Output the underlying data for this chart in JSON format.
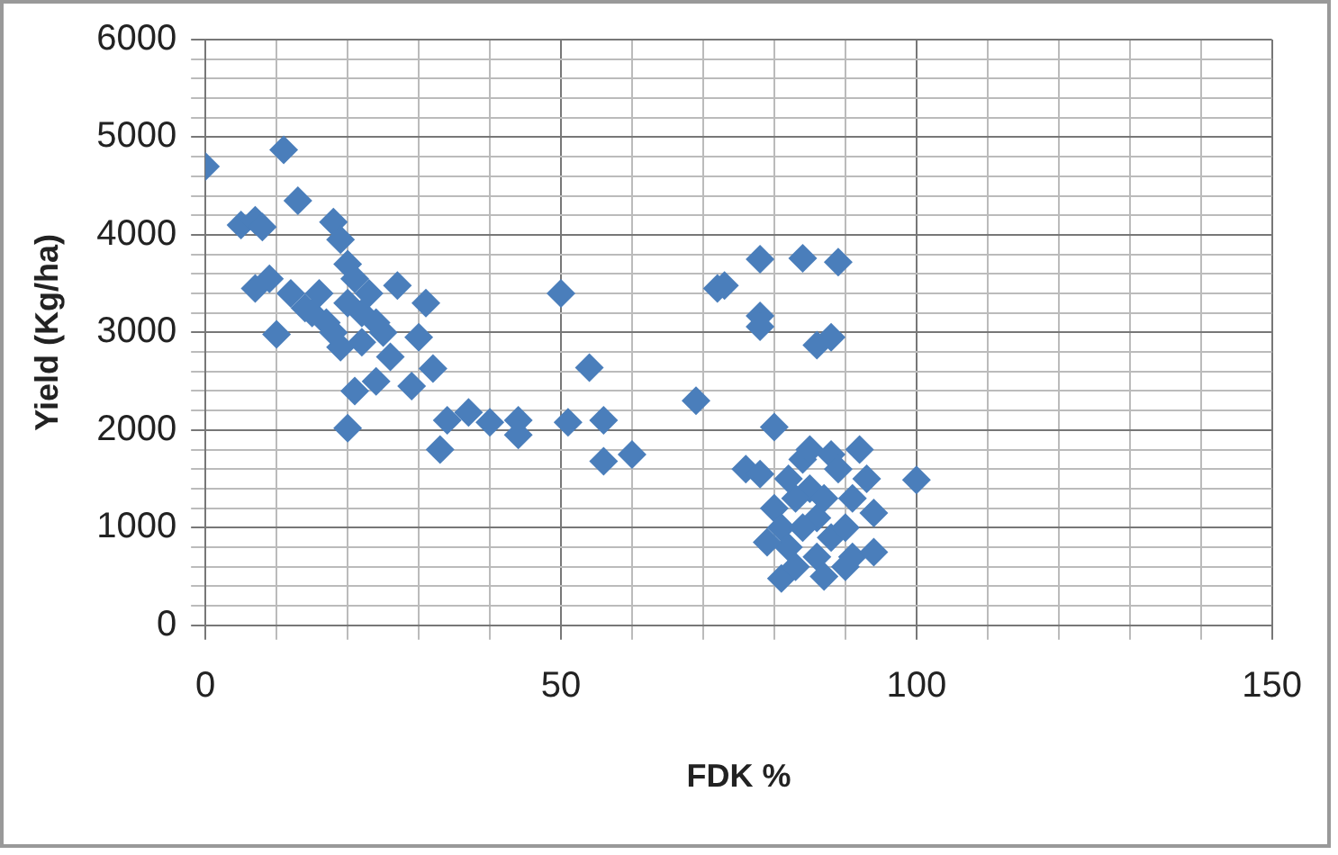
{
  "chart_data": {
    "type": "scatter",
    "xlabel": "FDK %",
    "ylabel": "Yield (Kg/ha)",
    "marker": "diamond",
    "grid": true,
    "legend": false,
    "xlim": [
      0,
      150
    ],
    "ylim": [
      0,
      6000
    ],
    "xticks": [
      0,
      {
        "value": 10,
        "label": null
      },
      {
        "value": 20,
        "label": null
      },
      {
        "value": 30,
        "label": null
      },
      {
        "value": 40,
        "label": null
      },
      50,
      {
        "value": 60,
        "label": null
      },
      {
        "value": 70,
        "label": null
      },
      {
        "value": 80,
        "label": null
      },
      {
        "value": 90,
        "label": null
      },
      100,
      {
        "value": 110,
        "label": null
      },
      {
        "value": 120,
        "label": null
      },
      {
        "value": 130,
        "label": null
      },
      {
        "value": 140,
        "label": null
      },
      150
    ],
    "yticks": [
      0,
      {
        "value": 200,
        "label": null
      },
      {
        "value": 400,
        "label": null
      },
      {
        "value": 600,
        "label": null
      },
      {
        "value": 800,
        "label": null
      },
      1000,
      {
        "value": 1200,
        "label": null
      },
      {
        "value": 1400,
        "label": null
      },
      {
        "value": 1600,
        "label": null
      },
      {
        "value": 1800,
        "label": null
      },
      2000,
      {
        "value": 2200,
        "label": null
      },
      {
        "value": 2400,
        "label": null
      },
      {
        "value": 2600,
        "label": null
      },
      {
        "value": 2800,
        "label": null
      },
      3000,
      {
        "value": 3200,
        "label": null
      },
      {
        "value": 3400,
        "label": null
      },
      {
        "value": 3600,
        "label": null
      },
      {
        "value": 3800,
        "label": null
      },
      4000,
      {
        "value": 4200,
        "label": null
      },
      {
        "value": 4400,
        "label": null
      },
      {
        "value": 4600,
        "label": null
      },
      {
        "value": 4800,
        "label": null
      },
      5000,
      {
        "value": 5200,
        "label": null
      },
      {
        "value": 5400,
        "label": null
      },
      {
        "value": 5600,
        "label": null
      },
      {
        "value": 5800,
        "label": null
      },
      6000
    ],
    "series": [
      {
        "color": "#4a7ebb",
        "x": [
          0,
          11,
          5,
          7,
          8,
          13,
          7,
          9,
          10,
          12,
          14,
          15,
          16,
          17,
          18,
          18,
          19,
          19,
          20,
          20,
          21,
          22,
          22,
          23,
          24,
          25,
          27,
          26,
          24,
          21,
          20,
          29,
          30,
          31,
          32,
          34,
          33,
          37,
          40,
          44,
          44,
          50,
          51,
          54,
          56,
          56,
          60,
          69,
          72,
          73,
          78,
          78,
          78,
          84,
          86,
          88,
          89,
          100,
          76,
          78,
          80,
          80,
          81,
          82,
          81,
          83,
          79,
          84,
          85,
          86,
          87,
          88,
          88,
          90,
          91,
          92,
          93,
          94,
          94,
          83,
          85,
          89,
          90,
          91,
          86,
          82,
          84,
          87
        ],
        "values": [
          4700,
          4870,
          4100,
          4150,
          4080,
          4350,
          3450,
          3550,
          2980,
          3400,
          3250,
          3200,
          3400,
          3100,
          3000,
          4130,
          3950,
          2850,
          3700,
          3300,
          3550,
          3200,
          2900,
          3400,
          3100,
          3000,
          3480,
          2750,
          2500,
          2400,
          2020,
          2450,
          2950,
          3300,
          2630,
          2100,
          1800,
          2180,
          2080,
          2100,
          1950,
          3400,
          2080,
          2640,
          2100,
          1680,
          1750,
          2300,
          3450,
          3480,
          3750,
          3170,
          3060,
          3760,
          2870,
          2950,
          3720,
          1490,
          1600,
          1550,
          2030,
          1200,
          1000,
          800,
          480,
          600,
          850,
          1700,
          1400,
          1100,
          1300,
          1750,
          900,
          600,
          700,
          1800,
          1500,
          1150,
          750,
          1300,
          1800,
          1600,
          1000,
          1300,
          700,
          1500,
          1000,
          500
        ]
      }
    ]
  }
}
